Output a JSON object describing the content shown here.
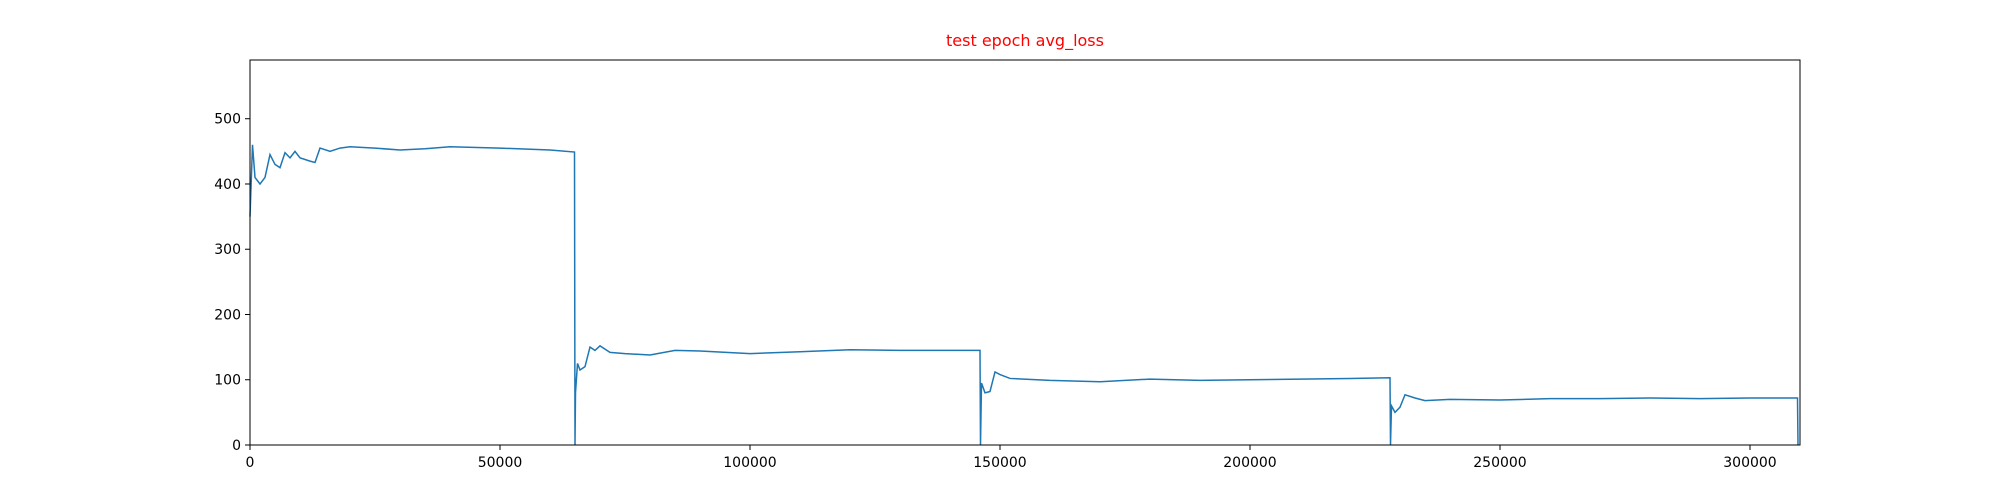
{
  "chart_data": {
    "type": "line",
    "title": "test epoch avg_loss",
    "title_color": "#ff0000",
    "x": [
      0,
      500,
      1000,
      2000,
      3000,
      4000,
      5000,
      6000,
      7000,
      8000,
      9000,
      10000,
      12000,
      13000,
      14000,
      16000,
      18000,
      20000,
      25000,
      30000,
      35000,
      40000,
      50000,
      60000,
      64900,
      65000,
      65100,
      65500,
      66000,
      67000,
      68000,
      69000,
      70000,
      72000,
      75000,
      80000,
      85000,
      90000,
      100000,
      110000,
      120000,
      130000,
      140000,
      146000,
      146100,
      146300,
      147000,
      148000,
      149000,
      150000,
      152000,
      160000,
      170000,
      180000,
      190000,
      200000,
      210000,
      220000,
      228000,
      228100,
      228300,
      229000,
      230000,
      231000,
      233000,
      235000,
      240000,
      250000,
      260000,
      270000,
      280000,
      290000,
      300000,
      309500,
      309600
    ],
    "series": [
      {
        "name": "avg_loss",
        "color": "#1f77b4",
        "values": [
          350,
          460,
          410,
          400,
          410,
          445,
          430,
          425,
          448,
          440,
          450,
          440,
          435,
          433,
          455,
          450,
          455,
          457,
          455,
          452,
          454,
          457,
          455,
          452,
          449,
          0,
          80,
          125,
          115,
          120,
          150,
          145,
          152,
          142,
          140,
          138,
          145,
          144,
          140,
          143,
          146,
          145,
          145,
          145,
          0,
          95,
          80,
          82,
          112,
          108,
          102,
          99,
          97,
          101,
          99,
          100,
          101,
          102,
          103,
          0,
          60,
          50,
          58,
          77,
          72,
          68,
          70,
          69,
          71,
          71,
          72,
          71,
          72,
          72,
          0
        ]
      }
    ],
    "xlim": [
      0,
      310000
    ],
    "ylim": [
      0,
      590
    ],
    "xticks": [
      0,
      50000,
      100000,
      150000,
      200000,
      250000,
      300000
    ],
    "yticks": [
      0,
      100,
      200,
      300,
      400,
      500
    ]
  }
}
